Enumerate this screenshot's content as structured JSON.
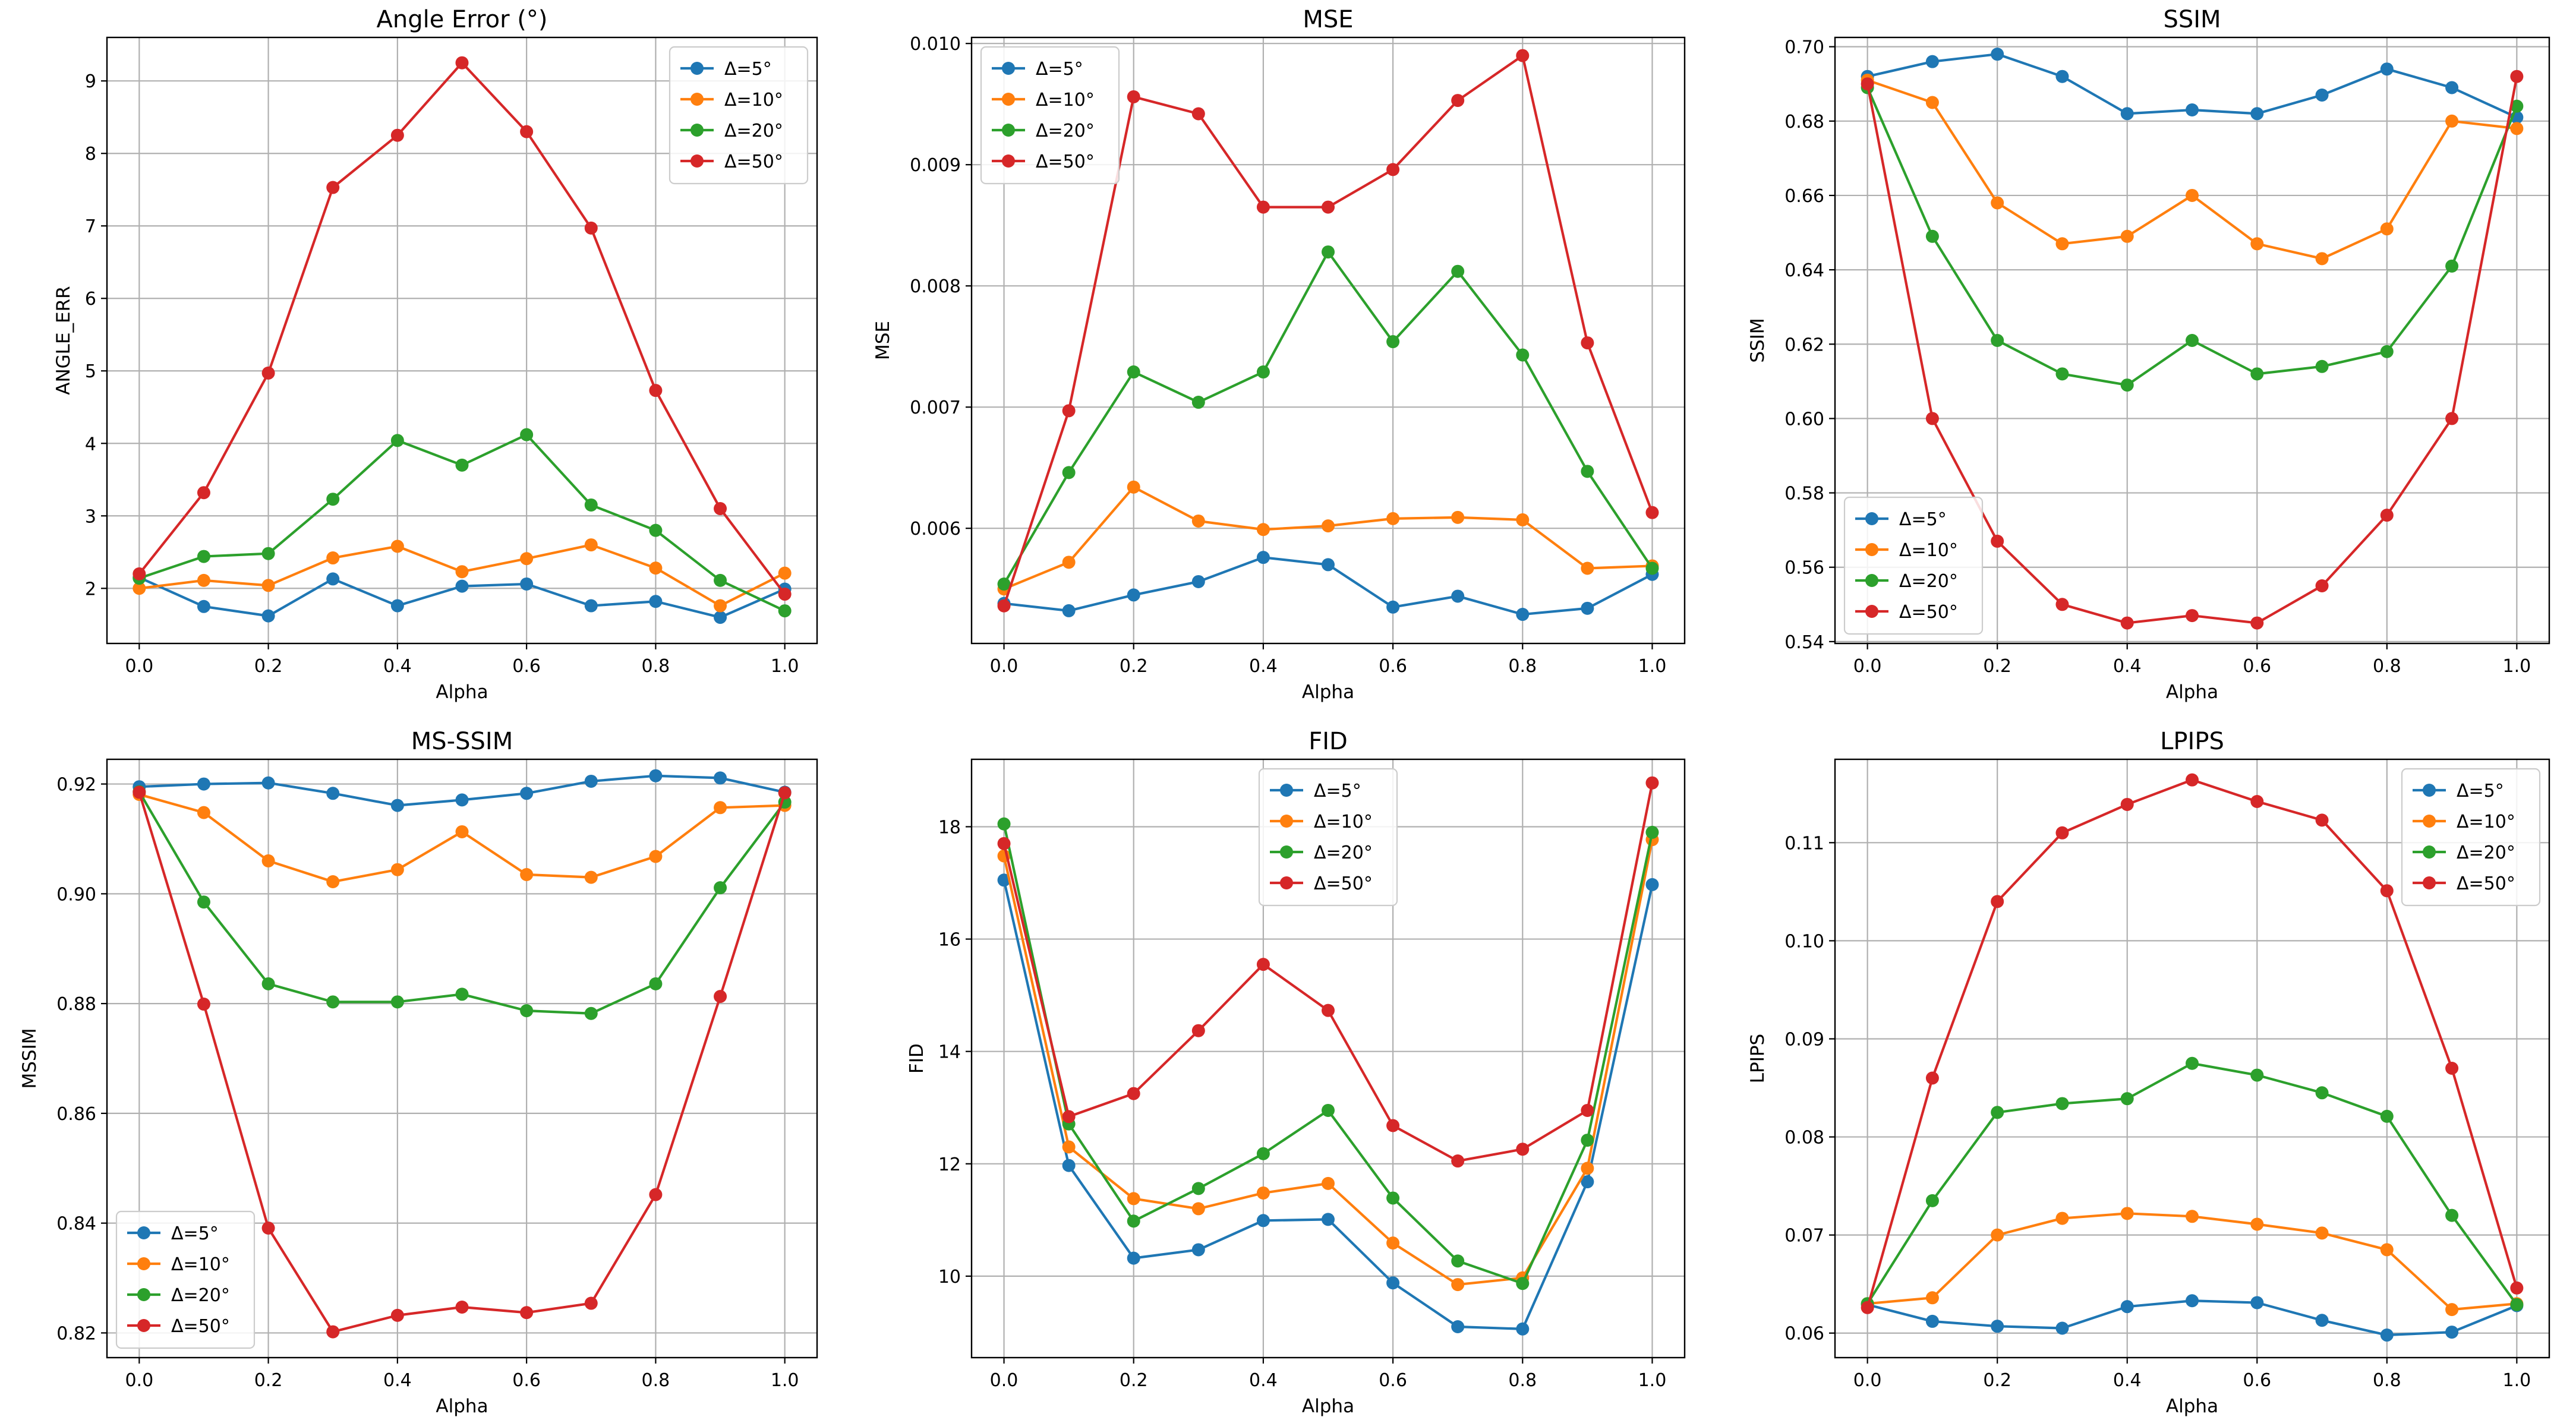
{
  "figure": {
    "layout": "2x3 grid of line charts"
  },
  "chart_data": [
    {
      "type": "line",
      "title": "Angle Error (°)",
      "xlabel": "Alpha",
      "ylabel": "ANGLE_ERR",
      "xlim": [
        -0.05,
        1.05
      ],
      "ylim": [
        1.24,
        9.6
      ],
      "xticks": [
        "0.0",
        "0.2",
        "0.4",
        "0.6",
        "0.8",
        "1.0"
      ],
      "yticks": [
        "2",
        "3",
        "4",
        "5",
        "6",
        "7",
        "8",
        "9"
      ],
      "grid": true,
      "legend_position": "top-right",
      "x": [
        0.0,
        0.1,
        0.2,
        0.3,
        0.4,
        0.5,
        0.6,
        0.7,
        0.8,
        0.9,
        1.0
      ],
      "series": [
        {
          "name": "Δ=5°",
          "values": [
            2.15,
            1.75,
            1.62,
            2.13,
            1.76,
            2.03,
            2.06,
            1.76,
            1.82,
            1.6,
            1.99
          ]
        },
        {
          "name": "Δ=10°",
          "values": [
            2.0,
            2.11,
            2.04,
            2.42,
            2.58,
            2.23,
            2.41,
            2.6,
            2.28,
            1.76,
            2.21
          ]
        },
        {
          "name": "Δ=20°",
          "values": [
            2.14,
            2.44,
            2.48,
            3.23,
            4.04,
            3.7,
            4.12,
            3.15,
            2.8,
            2.11,
            1.69
          ]
        },
        {
          "name": "Δ=50°",
          "values": [
            2.2,
            3.32,
            4.97,
            7.53,
            8.25,
            9.25,
            8.3,
            6.97,
            4.73,
            3.1,
            1.92
          ]
        }
      ]
    },
    {
      "type": "line",
      "title": "MSE",
      "xlabel": "Alpha",
      "ylabel": "MSE",
      "xlim": [
        -0.05,
        1.05
      ],
      "ylim": [
        0.00505,
        0.01005
      ],
      "xticks": [
        "0.0",
        "0.2",
        "0.4",
        "0.6",
        "0.8",
        "1.0"
      ],
      "yticks": [
        "0.006",
        "0.007",
        "0.008",
        "0.009",
        "0.010"
      ],
      "grid": true,
      "legend_position": "top-left",
      "x": [
        0.0,
        0.1,
        0.2,
        0.3,
        0.4,
        0.5,
        0.6,
        0.7,
        0.8,
        0.9,
        1.0
      ],
      "series": [
        {
          "name": "Δ=5°",
          "values": [
            0.00538,
            0.00532,
            0.00545,
            0.00556,
            0.00576,
            0.0057,
            0.00535,
            0.00544,
            0.00529,
            0.00534,
            0.00562
          ]
        },
        {
          "name": "Δ=10°",
          "values": [
            0.0055,
            0.00572,
            0.00634,
            0.00606,
            0.00599,
            0.00602,
            0.00608,
            0.00609,
            0.00607,
            0.00567,
            0.00569
          ]
        },
        {
          "name": "Δ=20°",
          "values": [
            0.00554,
            0.00646,
            0.00729,
            0.00704,
            0.00729,
            0.00828,
            0.00754,
            0.00812,
            0.00743,
            0.00647,
            0.00567
          ]
        },
        {
          "name": "Δ=50°",
          "values": [
            0.00536,
            0.00697,
            0.00956,
            0.00942,
            0.00865,
            0.00865,
            0.00896,
            0.00953,
            0.0099,
            0.00753,
            0.00613
          ]
        }
      ]
    },
    {
      "type": "line",
      "title": "SSIM",
      "xlabel": "Alpha",
      "ylabel": "SSIM",
      "xlim": [
        -0.05,
        1.05
      ],
      "ylim": [
        0.5395,
        0.7025
      ],
      "xticks": [
        "0.0",
        "0.2",
        "0.4",
        "0.6",
        "0.8",
        "1.0"
      ],
      "yticks": [
        "0.54",
        "0.56",
        "0.58",
        "0.60",
        "0.62",
        "0.64",
        "0.66",
        "0.68",
        "0.70"
      ],
      "grid": true,
      "legend_position": "bottom-left",
      "x": [
        0.0,
        0.1,
        0.2,
        0.3,
        0.4,
        0.5,
        0.6,
        0.7,
        0.8,
        0.9,
        1.0
      ],
      "series": [
        {
          "name": "Δ=5°",
          "values": [
            0.692,
            0.696,
            0.698,
            0.692,
            0.682,
            0.683,
            0.682,
            0.687,
            0.694,
            0.689,
            0.681
          ]
        },
        {
          "name": "Δ=10°",
          "values": [
            0.691,
            0.685,
            0.658,
            0.647,
            0.649,
            0.66,
            0.647,
            0.643,
            0.651,
            0.68,
            0.678
          ]
        },
        {
          "name": "Δ=20°",
          "values": [
            0.689,
            0.649,
            0.621,
            0.612,
            0.609,
            0.621,
            0.612,
            0.614,
            0.618,
            0.641,
            0.684
          ]
        },
        {
          "name": "Δ=50°",
          "values": [
            0.69,
            0.6,
            0.567,
            0.55,
            0.545,
            0.547,
            0.545,
            0.555,
            0.574,
            0.6,
            0.692
          ]
        }
      ]
    },
    {
      "type": "line",
      "title": "MS-SSIM",
      "xlabel": "Alpha",
      "ylabel": "MSSIM",
      "xlim": [
        -0.05,
        1.05
      ],
      "ylim": [
        0.8155,
        0.9245
      ],
      "xticks": [
        "0.0",
        "0.2",
        "0.4",
        "0.6",
        "0.8",
        "1.0"
      ],
      "yticks": [
        "0.82",
        "0.84",
        "0.86",
        "0.88",
        "0.90",
        "0.92"
      ],
      "grid": true,
      "legend_position": "bottom-left",
      "x": [
        0.0,
        0.1,
        0.2,
        0.3,
        0.4,
        0.5,
        0.6,
        0.7,
        0.8,
        0.9,
        1.0
      ],
      "series": [
        {
          "name": "Δ=5°",
          "values": [
            0.9195,
            0.92,
            0.9202,
            0.9183,
            0.9161,
            0.9171,
            0.9183,
            0.9205,
            0.9215,
            0.9211,
            0.9185
          ]
        },
        {
          "name": "Δ=10°",
          "values": [
            0.9181,
            0.9148,
            0.906,
            0.9022,
            0.9044,
            0.9113,
            0.9035,
            0.903,
            0.9068,
            0.9157,
            0.9161
          ]
        },
        {
          "name": "Δ=20°",
          "values": [
            0.9186,
            0.8985,
            0.8836,
            0.8803,
            0.8803,
            0.8817,
            0.8787,
            0.8782,
            0.8836,
            0.9011,
            0.9167
          ]
        },
        {
          "name": "Δ=50°",
          "values": [
            0.9185,
            0.8799,
            0.8391,
            0.8202,
            0.8232,
            0.8247,
            0.8237,
            0.8254,
            0.8452,
            0.8813,
            0.9184
          ]
        }
      ]
    },
    {
      "type": "line",
      "title": "FID",
      "xlabel": "Alpha",
      "ylabel": "FID",
      "xlim": [
        -0.05,
        1.05
      ],
      "ylim": [
        8.55,
        19.2
      ],
      "xticks": [
        "0.0",
        "0.2",
        "0.4",
        "0.6",
        "0.8",
        "1.0"
      ],
      "yticks": [
        "10",
        "12",
        "14",
        "16",
        "18"
      ],
      "grid": true,
      "legend_position": "top-center",
      "x": [
        0.0,
        0.1,
        0.2,
        0.3,
        0.4,
        0.5,
        0.6,
        0.7,
        0.8,
        0.9,
        1.0
      ],
      "series": [
        {
          "name": "Δ=5°",
          "values": [
            17.05,
            11.97,
            10.32,
            10.47,
            10.99,
            11.01,
            9.88,
            9.1,
            9.06,
            11.68,
            16.97
          ]
        },
        {
          "name": "Δ=10°",
          "values": [
            17.48,
            12.3,
            11.38,
            11.2,
            11.48,
            11.65,
            10.59,
            9.85,
            9.97,
            11.92,
            17.77
          ]
        },
        {
          "name": "Δ=20°",
          "values": [
            18.05,
            12.71,
            10.98,
            11.56,
            12.18,
            12.95,
            11.39,
            10.27,
            9.87,
            12.42,
            17.9
          ]
        },
        {
          "name": "Δ=50°",
          "values": [
            17.7,
            12.84,
            13.25,
            14.37,
            15.55,
            14.73,
            12.68,
            12.05,
            12.26,
            12.95,
            18.78
          ]
        }
      ]
    },
    {
      "type": "line",
      "title": "LPIPS",
      "xlabel": "Alpha",
      "ylabel": "LPIPS",
      "xlim": [
        -0.05,
        1.05
      ],
      "ylim": [
        0.0575,
        0.1185
      ],
      "xticks": [
        "0.0",
        "0.2",
        "0.4",
        "0.6",
        "0.8",
        "1.0"
      ],
      "yticks": [
        "0.06",
        "0.07",
        "0.08",
        "0.09",
        "0.10",
        "0.11"
      ],
      "grid": true,
      "legend_position": "top-right",
      "x": [
        0.0,
        0.1,
        0.2,
        0.3,
        0.4,
        0.5,
        0.6,
        0.7,
        0.8,
        0.9,
        1.0
      ],
      "series": [
        {
          "name": "Δ=5°",
          "values": [
            0.0629,
            0.0612,
            0.0607,
            0.0605,
            0.0627,
            0.0633,
            0.0631,
            0.0613,
            0.0598,
            0.0601,
            0.0628
          ]
        },
        {
          "name": "Δ=10°",
          "values": [
            0.063,
            0.0636,
            0.07,
            0.0717,
            0.0722,
            0.0719,
            0.0711,
            0.0702,
            0.0685,
            0.0624,
            0.063
          ]
        },
        {
          "name": "Δ=20°",
          "values": [
            0.063,
            0.0735,
            0.0825,
            0.0834,
            0.0839,
            0.0875,
            0.0863,
            0.0845,
            0.0821,
            0.072,
            0.0629
          ]
        },
        {
          "name": "Δ=50°",
          "values": [
            0.0626,
            0.086,
            0.104,
            0.111,
            0.1139,
            0.1164,
            0.1142,
            0.1123,
            0.1051,
            0.087,
            0.0646
          ]
        }
      ]
    }
  ],
  "series_colors": [
    "#1f77b4",
    "#ff7f0e",
    "#2ca02c",
    "#d62728"
  ]
}
